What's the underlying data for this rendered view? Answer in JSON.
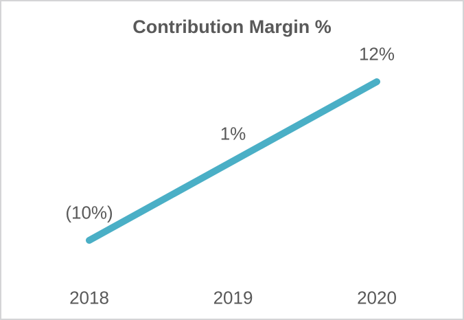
{
  "chart_data": {
    "type": "line",
    "title": "Contribution Margin %",
    "categories": [
      "2018",
      "2019",
      "2020"
    ],
    "series": [
      {
        "name": "Contribution Margin %",
        "values": [
          -10,
          1,
          12
        ],
        "data_labels": [
          "(10%)",
          "1%",
          "12%"
        ]
      }
    ],
    "xlabel": "",
    "ylabel": "",
    "ylim": [
      -10,
      12
    ],
    "grid": false,
    "legend_visible": false,
    "y_axis_visible": false,
    "data_label_position": "above",
    "colors": {
      "line": "#4aafc6",
      "text": "#595959",
      "title": "#595959",
      "border": "#d4d4d6",
      "background": "#ffffff"
    }
  }
}
